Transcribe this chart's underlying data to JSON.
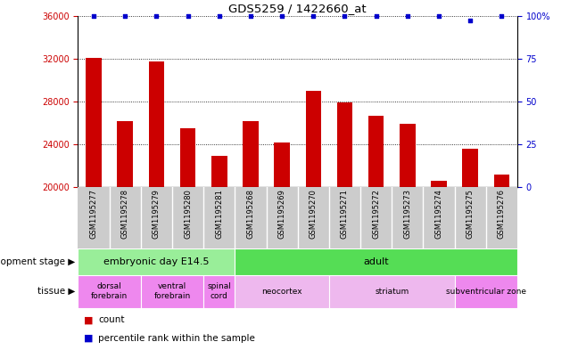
{
  "title": "GDS5259 / 1422660_at",
  "samples": [
    "GSM1195277",
    "GSM1195278",
    "GSM1195279",
    "GSM1195280",
    "GSM1195281",
    "GSM1195268",
    "GSM1195269",
    "GSM1195270",
    "GSM1195271",
    "GSM1195272",
    "GSM1195273",
    "GSM1195274",
    "GSM1195275",
    "GSM1195276"
  ],
  "counts": [
    32100,
    26200,
    31700,
    25500,
    22900,
    26200,
    24200,
    29000,
    27900,
    26700,
    25900,
    20600,
    23600,
    21200
  ],
  "percentiles": [
    100,
    100,
    100,
    100,
    100,
    100,
    100,
    100,
    100,
    100,
    100,
    100,
    97,
    100
  ],
  "ylim_left": [
    20000,
    36000
  ],
  "ylim_right": [
    0,
    100
  ],
  "yticks_left": [
    20000,
    24000,
    28000,
    32000,
    36000
  ],
  "yticks_right": [
    0,
    25,
    50,
    75,
    100
  ],
  "bar_color": "#cc0000",
  "dot_color": "#0000cc",
  "bar_width": 0.5,
  "development_stages": [
    {
      "label": "embryonic day E14.5",
      "start": 0,
      "end": 4,
      "color": "#99ee99"
    },
    {
      "label": "adult",
      "start": 5,
      "end": 13,
      "color": "#55dd55"
    }
  ],
  "tissues": [
    {
      "label": "dorsal\nforebrain",
      "start": 0,
      "end": 1,
      "color": "#ee88ee"
    },
    {
      "label": "ventral\nforebrain",
      "start": 2,
      "end": 3,
      "color": "#ee88ee"
    },
    {
      "label": "spinal\ncord",
      "start": 4,
      "end": 4,
      "color": "#ee88ee"
    },
    {
      "label": "neocortex",
      "start": 5,
      "end": 7,
      "color": "#eeb8ee"
    },
    {
      "label": "striatum",
      "start": 8,
      "end": 11,
      "color": "#eeb8ee"
    },
    {
      "label": "subventricular zone",
      "start": 12,
      "end": 13,
      "color": "#ee88ee"
    }
  ],
  "legend_count_label": "count",
  "legend_pct_label": "percentile rank within the sample",
  "dev_stage_label": "development stage",
  "tissue_label": "tissue"
}
